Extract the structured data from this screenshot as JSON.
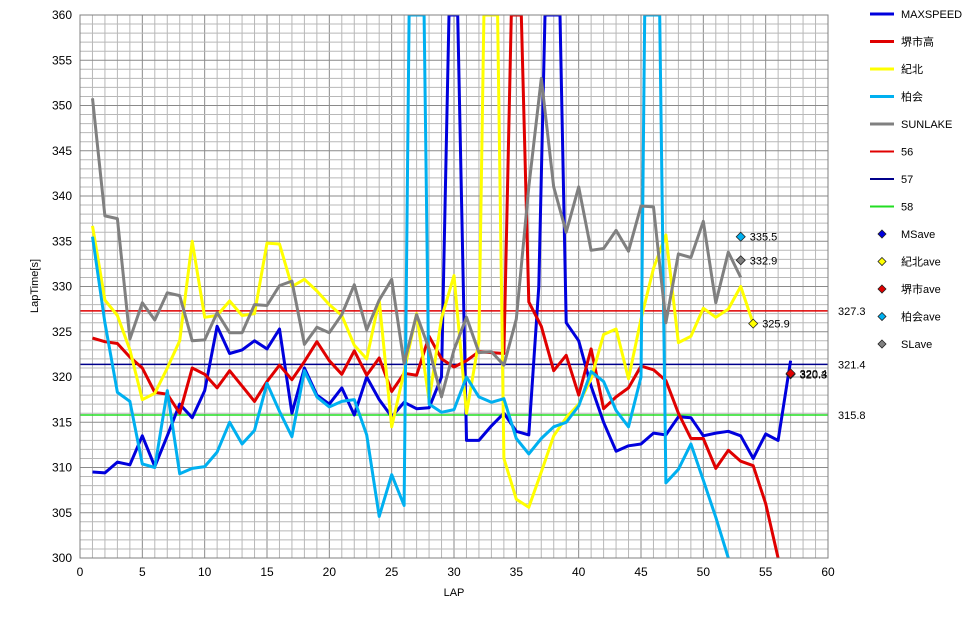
{
  "chart_data": {
    "type": "line",
    "xlabel": "LAP",
    "ylabel": "LapTime[s]",
    "xlim": [
      0,
      60
    ],
    "ylim": [
      300,
      360
    ],
    "x_major_step": 5,
    "y_major_step": 5,
    "minor_grid": true,
    "grid": true,
    "legend_position": "right",
    "series": [
      {
        "name": "MAXSPEED",
        "color": "#0000dd",
        "x": [
          1,
          2,
          3,
          4,
          5,
          6,
          7,
          8,
          9,
          10,
          11,
          12,
          13,
          14,
          15,
          16,
          17,
          18,
          19,
          20,
          21,
          22,
          23,
          24,
          25,
          26,
          27,
          28,
          29,
          29.6,
          30.3,
          31,
          32,
          33,
          34,
          35,
          36,
          36.8,
          37.3,
          37.8,
          38.5,
          39,
          40,
          41,
          42,
          43,
          44,
          45,
          46,
          47,
          48,
          49,
          50,
          51,
          52,
          53,
          54,
          55,
          56,
          57
        ],
        "y": [
          309.5,
          309.4,
          310.6,
          310.3,
          313.5,
          310.1,
          313.5,
          317.0,
          315.5,
          318.5,
          325.6,
          322.6,
          323.0,
          324.0,
          323.1,
          325.3,
          316.0,
          321.0,
          318.0,
          317.0,
          318.8,
          315.8,
          320.0,
          317.5,
          315.6,
          317.2,
          316.5,
          316.6,
          320.0,
          360,
          360,
          313.0,
          313.0,
          314.6,
          316.0,
          314.0,
          313.6,
          330,
          360,
          360,
          360,
          326.0,
          324.0,
          319.0,
          315.0,
          311.8,
          312.4,
          312.6,
          313.8,
          313.6,
          315.6,
          315.5,
          313.5,
          313.8,
          314.0,
          313.5,
          311.0,
          313.7,
          313.0,
          321.8
        ]
      },
      {
        "name": "堺市高",
        "color": "#e00000",
        "x": [
          1,
          2,
          3,
          4,
          5,
          6,
          7,
          8,
          9,
          10,
          11,
          12,
          13,
          14,
          15,
          16,
          17,
          18,
          19,
          20,
          21,
          22,
          23,
          24,
          25,
          26,
          27,
          28,
          29,
          30,
          31,
          32,
          33,
          34,
          34.6,
          35.4,
          36,
          37,
          38,
          39,
          40,
          41,
          42,
          43,
          44,
          45,
          46,
          47,
          48,
          49,
          50,
          51,
          52,
          53,
          54,
          55,
          56
        ],
        "y": [
          324.3,
          323.9,
          323.7,
          322.2,
          321.0,
          318.3,
          318.1,
          316.0,
          321.0,
          320.3,
          318.8,
          320.7,
          319.0,
          317.3,
          319.5,
          321.3,
          319.7,
          321.7,
          323.9,
          321.8,
          320.3,
          322.9,
          320.2,
          322.1,
          318.4,
          320.4,
          320.2,
          324.5,
          322.0,
          321.1,
          321.8,
          322.8,
          322.7,
          322.6,
          360,
          360,
          328.3,
          325.6,
          320.7,
          322.4,
          318.0,
          323.1,
          316.5,
          317.8,
          318.8,
          321.2,
          320.8,
          319.6,
          316.0,
          313.2,
          313.2,
          309.9,
          311.9,
          310.7,
          310.2,
          306.0,
          300
        ]
      },
      {
        "name": "紀北",
        "color": "#ffff00",
        "x": [
          1,
          2,
          3,
          4,
          5,
          6,
          7,
          8,
          9,
          10,
          11,
          12,
          13,
          14,
          15,
          16,
          17,
          18,
          19,
          20,
          21,
          22,
          23,
          24,
          25,
          26,
          27,
          28,
          29,
          30,
          31,
          32,
          32.4,
          32.9,
          33.5,
          34,
          35,
          36,
          37,
          38,
          39,
          40,
          41,
          42,
          43,
          44,
          45,
          46,
          47,
          48,
          49,
          50,
          51,
          52,
          53,
          54
        ],
        "y": [
          336.7,
          328.5,
          326.8,
          323.0,
          317.5,
          318.2,
          321.0,
          324.0,
          335.0,
          326.6,
          326.8,
          328.4,
          326.8,
          327.0,
          334.8,
          334.7,
          330.0,
          330.8,
          329.5,
          328.0,
          326.8,
          323.5,
          322.0,
          328.5,
          314.5,
          320.6,
          327.0,
          317.4,
          326.5,
          331.2,
          316.0,
          324.0,
          360,
          360,
          360,
          311.0,
          306.5,
          305.6,
          309.5,
          313.5,
          315.5,
          317.0,
          319.8,
          324.7,
          325.3,
          319.8,
          326.4,
          332.0,
          335.7,
          323.8,
          324.5,
          327.6,
          326.6,
          327.5,
          330.0,
          325.9
        ]
      },
      {
        "name": "柏会",
        "color": "#00b0f0",
        "x": [
          1,
          2,
          3,
          4,
          5,
          6,
          7,
          8,
          9,
          10,
          11,
          12,
          13,
          14,
          15,
          16,
          17,
          18,
          19,
          20,
          21,
          22,
          23,
          24,
          25,
          26,
          26.4,
          26.9,
          27.6,
          28,
          29,
          30,
          31,
          32,
          33,
          34,
          35,
          36,
          37,
          38,
          39,
          40,
          41,
          42,
          43,
          44,
          45,
          45.3,
          45.8,
          46.5,
          47,
          48,
          49,
          50,
          51,
          52
        ],
        "y": [
          335.5,
          326.0,
          318.3,
          317.3,
          310.4,
          310.0,
          318.5,
          309.3,
          309.9,
          310.1,
          311.7,
          315.0,
          312.6,
          314.1,
          319.3,
          316.2,
          313.4,
          320.7,
          317.8,
          316.7,
          317.3,
          317.5,
          313.6,
          304.6,
          309.2,
          305.8,
          360,
          360,
          360,
          317.0,
          316.1,
          316.4,
          320.0,
          317.8,
          317.2,
          317.6,
          313.2,
          311.5,
          313.2,
          314.5,
          315.0,
          316.8,
          320.6,
          319.5,
          316.3,
          314.5,
          320,
          360,
          360,
          360,
          308.3,
          309.8,
          312.6,
          308.6,
          304.5,
          300
        ]
      },
      {
        "name": "SUNLAKE",
        "color": "#808080",
        "x": [
          1,
          2,
          3,
          4,
          5,
          6,
          7,
          8,
          9,
          10,
          11,
          12,
          13,
          14,
          15,
          16,
          17,
          18,
          19,
          20,
          21,
          22,
          23,
          24,
          25,
          26,
          27,
          28,
          29,
          30,
          31,
          32,
          33,
          34,
          35,
          36,
          37,
          38,
          39,
          40,
          41,
          42,
          43,
          44,
          45,
          46,
          47,
          48,
          49,
          50,
          51,
          52,
          53
        ],
        "y": [
          350.8,
          337.8,
          337.5,
          324.2,
          328.2,
          326.3,
          329.3,
          329.0,
          324.0,
          324.1,
          327.1,
          324.9,
          324.9,
          328.0,
          327.9,
          330.1,
          330.6,
          323.6,
          325.5,
          324.9,
          326.9,
          330.2,
          325.2,
          328.5,
          330.8,
          321.5,
          326.9,
          323.1,
          317.8,
          323.0,
          326.6,
          322.7,
          322.8,
          321.3,
          326.4,
          341.0,
          353.0,
          341.0,
          336.0,
          341.0,
          334.0,
          334.2,
          336.2,
          333.9,
          338.9,
          338.8,
          326.0,
          333.6,
          333.2,
          337.2,
          328.2,
          333.8,
          331.0
        ]
      }
    ],
    "reference_lines": [
      {
        "name": "56",
        "value": 327.3,
        "label": "327.3",
        "color": "#e00000"
      },
      {
        "name": "57",
        "value": 321.4,
        "label": "321.4",
        "color": "#00008b"
      },
      {
        "name": "58",
        "value": 315.8,
        "label": "315.8",
        "color": "#22dd22"
      }
    ],
    "averages": [
      {
        "name": "MSave",
        "x": 57,
        "y": 320.3,
        "label": "320.3",
        "color": "#0000dd"
      },
      {
        "name": "紀北ave",
        "x": 54,
        "y": 325.9,
        "label": "325.9",
        "color": "#ffff00"
      },
      {
        "name": "堺市ave",
        "x": 57,
        "y": 320.4,
        "label": "320.4",
        "color": "#e00000"
      },
      {
        "name": "柏会ave",
        "x": 53,
        "y": 335.5,
        "label": "335.5",
        "color": "#00b0f0"
      },
      {
        "name": "SLave",
        "x": 53,
        "y": 332.9,
        "label": "332.9",
        "color": "#808080"
      }
    ],
    "xticks": [
      "0",
      "5",
      "10",
      "15",
      "20",
      "25",
      "30",
      "35",
      "40",
      "45",
      "50",
      "55",
      "60"
    ],
    "yticks": [
      "300",
      "305",
      "310",
      "315",
      "320",
      "325",
      "330",
      "335",
      "340",
      "345",
      "350",
      "355",
      "360"
    ]
  }
}
